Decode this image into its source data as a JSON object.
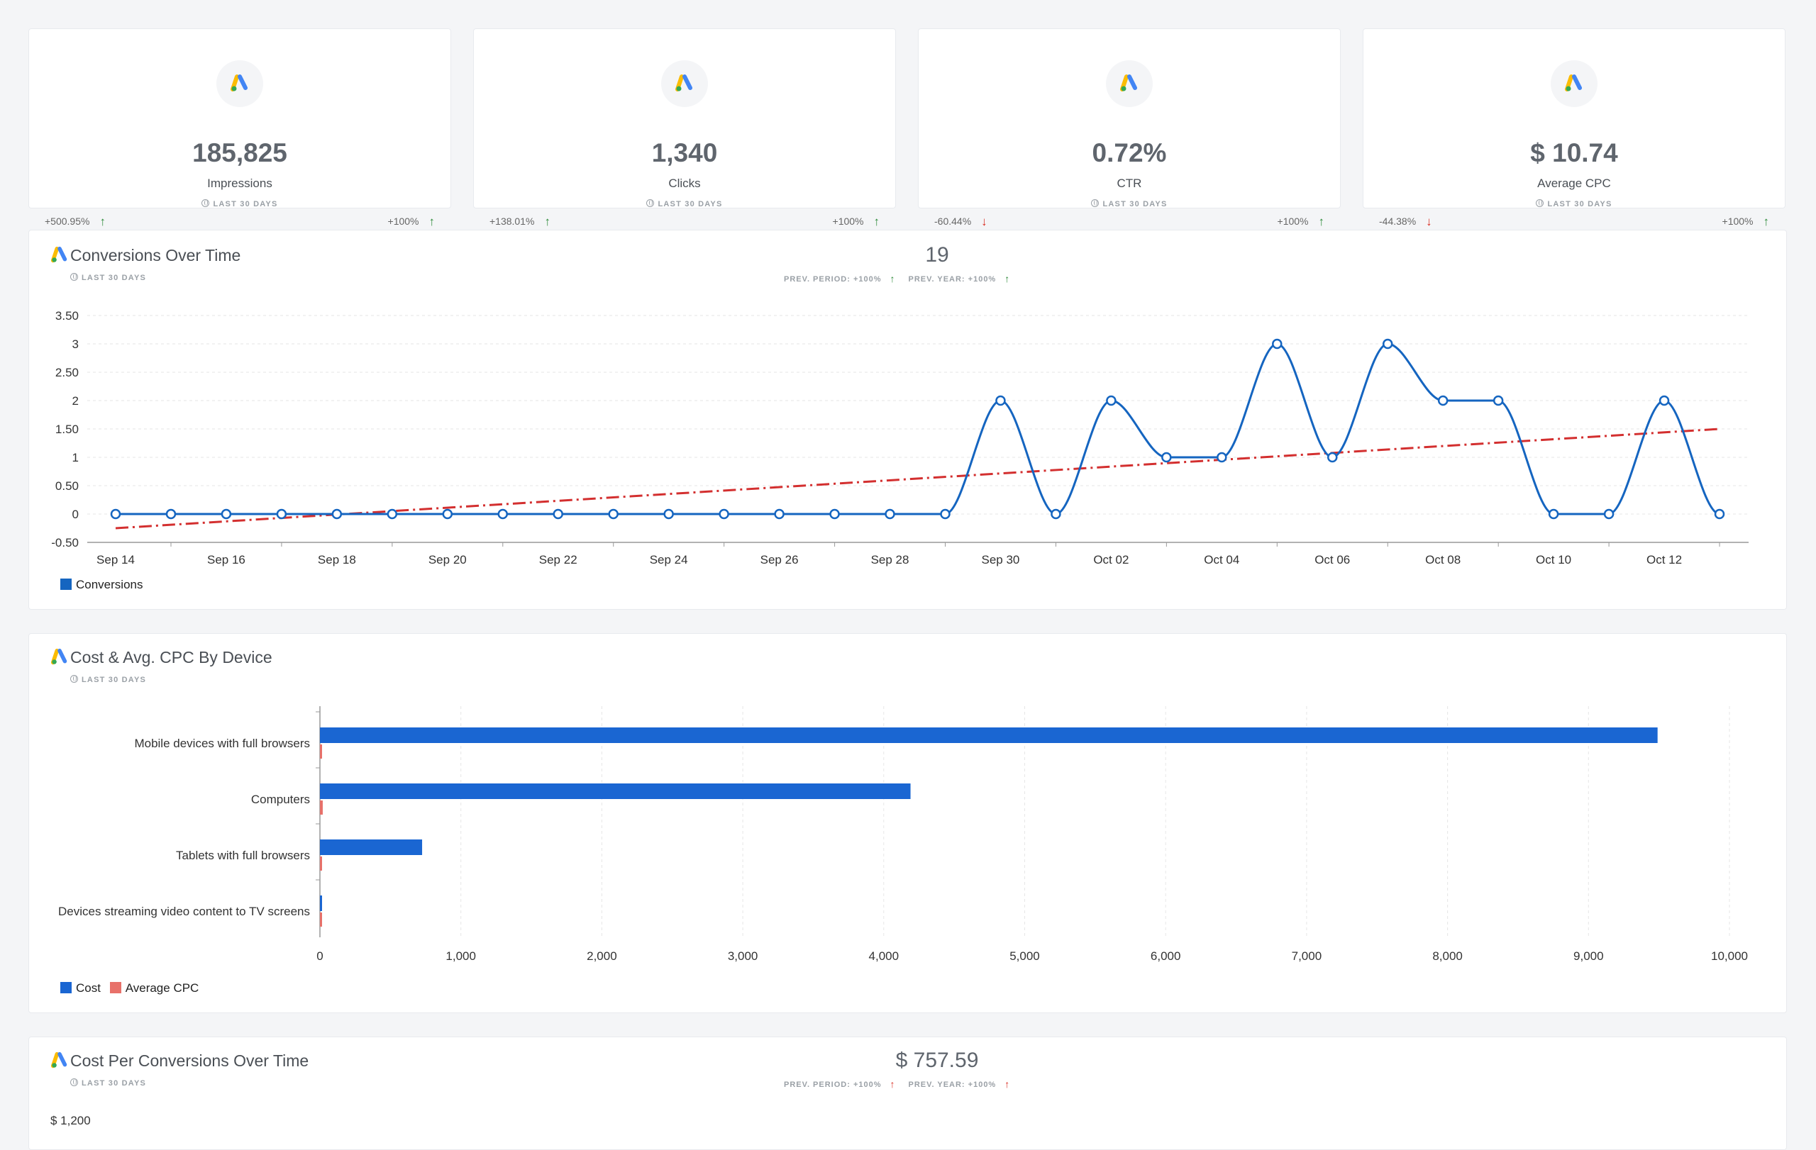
{
  "kpis": [
    {
      "value": "185,825",
      "label": "Impressions",
      "period": "LAST 30 DAYS",
      "left_change": "+500.95%",
      "left_dir": "up",
      "right_change": "+100%",
      "right_dir": "up"
    },
    {
      "value": "1,340",
      "label": "Clicks",
      "period": "LAST 30 DAYS",
      "left_change": "+138.01%",
      "left_dir": "up",
      "right_change": "+100%",
      "right_dir": "up"
    },
    {
      "value": "0.72%",
      "label": "CTR",
      "period": "LAST 30 DAYS",
      "left_change": "-60.44%",
      "left_dir": "down",
      "right_change": "+100%",
      "right_dir": "up"
    },
    {
      "value": "$ 10.74",
      "label": "Average CPC",
      "period": "LAST 30 DAYS",
      "left_change": "-44.38%",
      "left_dir": "down",
      "right_change": "+100%",
      "right_dir": "up"
    }
  ],
  "conversions": {
    "title": "Conversions Over Time",
    "period": "LAST 30 DAYS",
    "total": "19",
    "prev_period": "PREV. PERIOD: +100%",
    "prev_year": "PREV. YEAR: +100%",
    "legend": "Conversions"
  },
  "cost_device": {
    "title": "Cost & Avg. CPC By Device",
    "period": "LAST 30 DAYS",
    "legend_cost": "Cost",
    "legend_cpc": "Average CPC"
  },
  "cost_per_conv": {
    "title": "Cost Per Conversions Over Time",
    "period": "LAST 30 DAYS",
    "total": "$ 757.59",
    "prev_period": "PREV. PERIOD: +100%",
    "prev_year": "PREV. YEAR: +100%",
    "first_tick": "$ 1,200"
  },
  "colors": {
    "blue": "#1565c0",
    "bar_blue": "#1a66d2",
    "cpc_red": "#e8716a",
    "trend_red": "#d32f2f",
    "up": "#2e8b3a",
    "down": "#d93025"
  },
  "chart_data": [
    {
      "type": "line",
      "title": "Conversions Over Time",
      "x": [
        "Sep 14",
        "Sep 15",
        "Sep 16",
        "Sep 17",
        "Sep 18",
        "Sep 19",
        "Sep 20",
        "Sep 21",
        "Sep 22",
        "Sep 23",
        "Sep 24",
        "Sep 25",
        "Sep 26",
        "Sep 27",
        "Sep 28",
        "Sep 29",
        "Sep 30",
        "Oct 01",
        "Oct 02",
        "Oct 03",
        "Oct 04",
        "Oct 05",
        "Oct 06",
        "Oct 07",
        "Oct 08",
        "Oct 09",
        "Oct 10",
        "Oct 11",
        "Oct 12",
        "Oct 13"
      ],
      "x_tick_labels": [
        "Sep 14",
        "Sep 16",
        "Sep 18",
        "Sep 20",
        "Sep 22",
        "Sep 24",
        "Sep 26",
        "Sep 28",
        "Sep 30",
        "Oct 02",
        "Oct 04",
        "Oct 06",
        "Oct 08",
        "Oct 10",
        "Oct 12"
      ],
      "series": [
        {
          "name": "Conversions",
          "values": [
            0,
            0,
            0,
            0,
            0,
            0,
            0,
            0,
            0,
            0,
            0,
            0,
            0,
            0,
            0,
            0,
            2,
            0,
            2,
            1,
            1,
            3,
            1,
            3,
            2,
            2,
            0,
            0,
            2,
            0
          ]
        }
      ],
      "trendline": {
        "start": -0.25,
        "end": 1.5
      },
      "ylim": [
        -0.5,
        3.5
      ],
      "y_ticks": [
        "-0.50",
        "0",
        "0.50",
        "1",
        "1.50",
        "2",
        "2.50",
        "3",
        "3.50"
      ],
      "grid": true,
      "legend": "bottom-left"
    },
    {
      "type": "bar",
      "orientation": "horizontal",
      "title": "Cost & Avg. CPC By Device",
      "categories": [
        "Mobile devices with full browsers",
        "Computers",
        "Tablets with full browsers",
        "Devices streaming video content to TV screens"
      ],
      "series": [
        {
          "name": "Cost",
          "values": [
            9490,
            4190,
            725,
            15
          ]
        },
        {
          "name": "Average CPC",
          "values": [
            13,
            20,
            8,
            4
          ]
        }
      ],
      "xlim": [
        0,
        10000
      ],
      "x_ticks": [
        "0",
        "1,000",
        "2,000",
        "3,000",
        "4,000",
        "5,000",
        "6,000",
        "7,000",
        "8,000",
        "9,000",
        "10,000"
      ],
      "grid": true,
      "legend": "bottom-left"
    }
  ]
}
